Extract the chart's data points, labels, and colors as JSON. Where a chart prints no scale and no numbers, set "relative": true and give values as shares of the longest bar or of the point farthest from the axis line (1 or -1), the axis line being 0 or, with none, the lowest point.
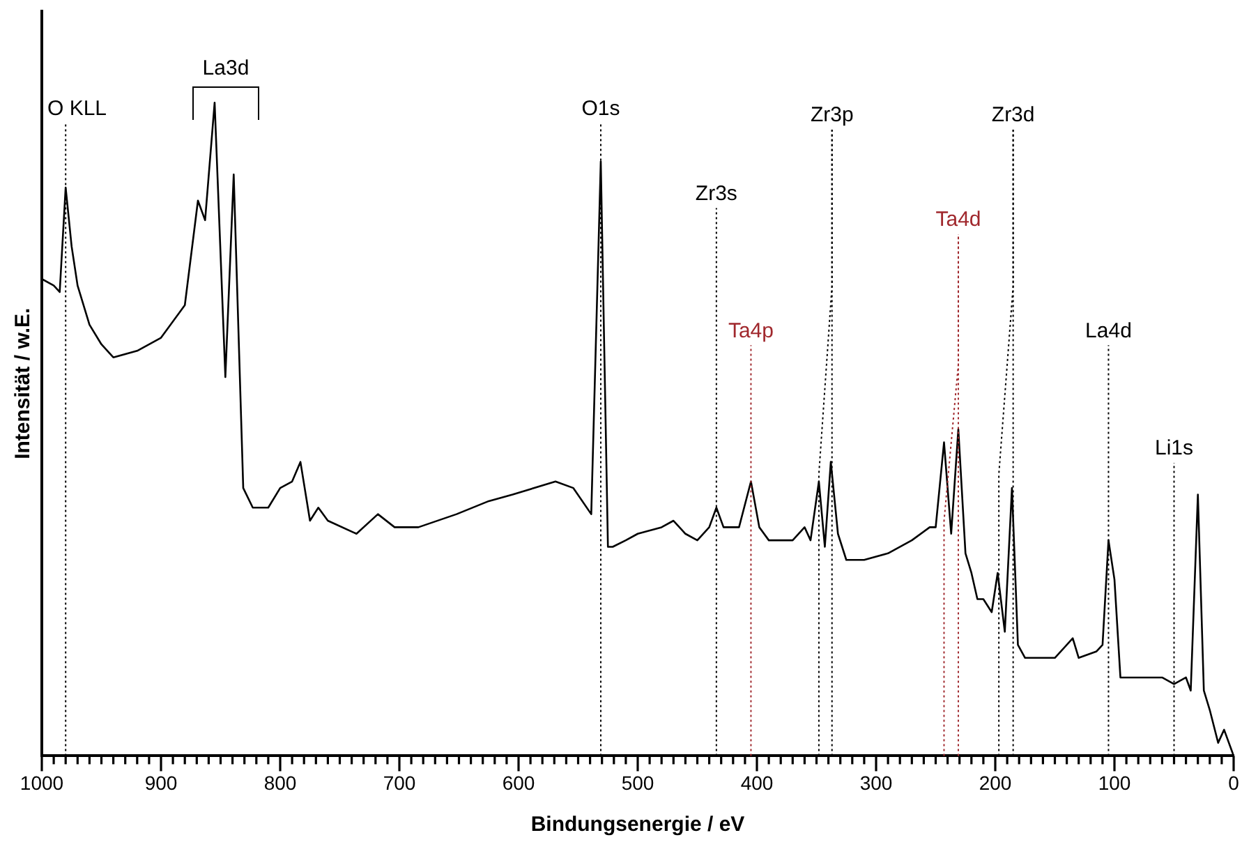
{
  "chart_data": {
    "type": "line",
    "relative": true,
    "xlabel": "Bindungsenergie / eV",
    "ylabel": "Intensität / w.E.",
    "color": "#000000",
    "line_style": "solid",
    "legend": false,
    "grid": false,
    "xlim": [
      1000,
      0
    ],
    "xticks": [
      0,
      {
        "value": 10,
        "label": null
      },
      {
        "value": 20,
        "label": null
      },
      {
        "value": 30,
        "label": null
      },
      {
        "value": 40,
        "label": null
      },
      {
        "value": 50,
        "label": null
      },
      {
        "value": 60,
        "label": null
      },
      {
        "value": 70,
        "label": null
      },
      {
        "value": 80,
        "label": null
      },
      {
        "value": 90,
        "label": null
      },
      100,
      {
        "value": 110,
        "label": null
      },
      {
        "value": 120,
        "label": null
      },
      {
        "value": 130,
        "label": null
      },
      {
        "value": 140,
        "label": null
      },
      {
        "value": 150,
        "label": null
      },
      {
        "value": 160,
        "label": null
      },
      {
        "value": 170,
        "label": null
      },
      {
        "value": 180,
        "label": null
      },
      {
        "value": 190,
        "label": null
      },
      200,
      {
        "value": 210,
        "label": null
      },
      {
        "value": 220,
        "label": null
      },
      {
        "value": 230,
        "label": null
      },
      {
        "value": 240,
        "label": null
      },
      {
        "value": 250,
        "label": null
      },
      {
        "value": 260,
        "label": null
      },
      {
        "value": 270,
        "label": null
      },
      {
        "value": 280,
        "label": null
      },
      {
        "value": 290,
        "label": null
      },
      300,
      {
        "value": 310,
        "label": null
      },
      {
        "value": 320,
        "label": null
      },
      {
        "value": 330,
        "label": null
      },
      {
        "value": 340,
        "label": null
      },
      {
        "value": 350,
        "label": null
      },
      {
        "value": 360,
        "label": null
      },
      {
        "value": 370,
        "label": null
      },
      {
        "value": 380,
        "label": null
      },
      {
        "value": 390,
        "label": null
      },
      400,
      {
        "value": 410,
        "label": null
      },
      {
        "value": 420,
        "label": null
      },
      {
        "value": 430,
        "label": null
      },
      {
        "value": 440,
        "label": null
      },
      {
        "value": 450,
        "label": null
      },
      {
        "value": 460,
        "label": null
      },
      {
        "value": 470,
        "label": null
      },
      {
        "value": 480,
        "label": null
      },
      {
        "value": 490,
        "label": null
      },
      500,
      {
        "value": 510,
        "label": null
      },
      {
        "value": 520,
        "label": null
      },
      {
        "value": 530,
        "label": null
      },
      {
        "value": 540,
        "label": null
      },
      {
        "value": 550,
        "label": null
      },
      {
        "value": 560,
        "label": null
      },
      {
        "value": 570,
        "label": null
      },
      {
        "value": 580,
        "label": null
      },
      {
        "value": 590,
        "label": null
      },
      600,
      {
        "value": 610,
        "label": null
      },
      {
        "value": 620,
        "label": null
      },
      {
        "value": 630,
        "label": null
      },
      {
        "value": 640,
        "label": null
      },
      {
        "value": 650,
        "label": null
      },
      {
        "value": 660,
        "label": null
      },
      {
        "value": 670,
        "label": null
      },
      {
        "value": 680,
        "label": null
      },
      {
        "value": 690,
        "label": null
      },
      700,
      {
        "value": 710,
        "label": null
      },
      {
        "value": 720,
        "label": null
      },
      {
        "value": 730,
        "label": null
      },
      {
        "value": 740,
        "label": null
      },
      {
        "value": 750,
        "label": null
      },
      {
        "value": 760,
        "label": null
      },
      {
        "value": 770,
        "label": null
      },
      {
        "value": 780,
        "label": null
      },
      {
        "value": 790,
        "label": null
      },
      800,
      {
        "value": 810,
        "label": null
      },
      {
        "value": 820,
        "label": null
      },
      {
        "value": 830,
        "label": null
      },
      {
        "value": 840,
        "label": null
      },
      {
        "value": 850,
        "label": null
      },
      {
        "value": 860,
        "label": null
      },
      {
        "value": 870,
        "label": null
      },
      {
        "value": 880,
        "label": null
      },
      {
        "value": 890,
        "label": null
      },
      900,
      {
        "value": 910,
        "label": null
      },
      {
        "value": 920,
        "label": null
      },
      {
        "value": 930,
        "label": null
      },
      {
        "value": 940,
        "label": null
      },
      {
        "value": 950,
        "label": null
      },
      {
        "value": 960,
        "label": null
      },
      {
        "value": 970,
        "label": null
      },
      {
        "value": 980,
        "label": null
      },
      {
        "value": 990,
        "label": null
      },
      1000
    ],
    "x": [
      1000,
      990,
      985,
      980,
      975,
      970,
      960,
      950,
      940,
      920,
      900,
      880,
      869,
      863,
      855,
      846,
      839,
      831,
      823,
      810,
      800,
      790,
      783,
      775,
      768,
      760,
      736,
      718,
      704,
      684,
      652,
      625,
      605,
      569,
      554,
      539,
      531,
      525,
      521,
      510,
      500,
      480,
      470,
      460,
      450,
      440,
      434,
      428,
      415,
      405,
      398,
      390,
      370,
      360,
      355,
      348,
      343,
      338,
      332,
      325,
      310,
      290,
      270,
      255,
      250,
      243,
      237,
      231,
      225,
      220,
      215,
      210,
      203,
      198,
      192,
      186,
      181,
      175,
      150,
      135,
      130,
      115,
      110,
      105,
      100,
      95,
      80,
      60,
      50,
      40,
      36,
      30,
      25,
      20,
      13,
      8,
      2,
      0
    ],
    "values": [
      0.73,
      0.72,
      0.71,
      0.87,
      0.78,
      0.72,
      0.66,
      0.63,
      0.61,
      0.62,
      0.64,
      0.69,
      0.85,
      0.82,
      1.0,
      0.58,
      0.89,
      0.41,
      0.38,
      0.38,
      0.41,
      0.42,
      0.45,
      0.36,
      0.38,
      0.36,
      0.34,
      0.37,
      0.35,
      0.35,
      0.37,
      0.39,
      0.4,
      0.42,
      0.41,
      0.37,
      0.91,
      0.32,
      0.32,
      0.33,
      0.34,
      0.35,
      0.36,
      0.34,
      0.33,
      0.35,
      0.38,
      0.35,
      0.35,
      0.42,
      0.35,
      0.33,
      0.33,
      0.35,
      0.33,
      0.42,
      0.32,
      0.45,
      0.34,
      0.3,
      0.3,
      0.31,
      0.33,
      0.35,
      0.35,
      0.48,
      0.34,
      0.5,
      0.31,
      0.28,
      0.24,
      0.24,
      0.22,
      0.28,
      0.19,
      0.41,
      0.17,
      0.15,
      0.15,
      0.18,
      0.15,
      0.16,
      0.17,
      0.33,
      0.27,
      0.12,
      0.12,
      0.12,
      0.11,
      0.12,
      0.1,
      0.4,
      0.1,
      0.07,
      0.02,
      0.04,
      0.01,
      0.0
    ],
    "ref_lines": [
      {
        "axis": "x",
        "value": 980,
        "label": "O KLL",
        "color": "#000000",
        "line_style": "dotted"
      },
      {
        "axis": "x",
        "value": 531,
        "label": "O1s",
        "color": "#000000",
        "line_style": "dotted"
      },
      {
        "axis": "x",
        "value": 434,
        "label": "Zr3s",
        "color": "#000000",
        "line_style": "dotted"
      },
      {
        "axis": "x",
        "value": 405,
        "label": "Ta4p",
        "color": "#a0282d",
        "line_style": "dotted"
      },
      {
        "axis": "x",
        "value": 348,
        "color": "#000000",
        "line_style": "dotted"
      },
      {
        "axis": "x",
        "value": 337,
        "label": "Zr3p",
        "color": "#000000",
        "line_style": "dotted"
      },
      {
        "axis": "x",
        "value": 243,
        "color": "#a0282d",
        "line_style": "dotted"
      },
      {
        "axis": "x",
        "value": 231,
        "label": "Ta4d",
        "color": "#a0282d",
        "line_style": "dotted"
      },
      {
        "axis": "x",
        "value": 197,
        "color": "#000000",
        "line_style": "dotted"
      },
      {
        "axis": "x",
        "value": 185,
        "label": "Zr3d",
        "color": "#000000",
        "line_style": "dotted"
      },
      {
        "axis": "x",
        "value": 105,
        "label": "La4d",
        "color": "#000000",
        "line_style": "dotted"
      },
      {
        "axis": "x",
        "value": 50,
        "label": "Li1s",
        "color": "#000000",
        "line_style": "dotted"
      }
    ],
    "annotations": [
      "La3d"
    ]
  }
}
